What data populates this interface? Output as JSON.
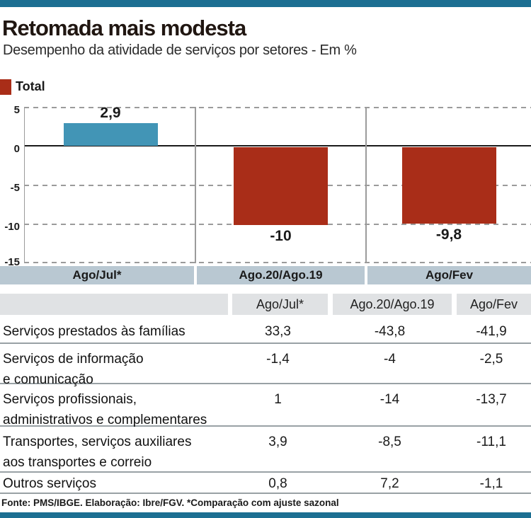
{
  "header": {
    "title": "Retomada mais modesta",
    "subtitle": "Desempenho da atividade de serviços por setores - Em %"
  },
  "legend": {
    "label": "Total",
    "swatch_color": "#a92d18"
  },
  "chart_data": {
    "type": "bar",
    "title": "Retomada mais modesta",
    "subtitle": "Desempenho da atividade de serviços por setores - Em %",
    "series_name": "Total",
    "categories": [
      "Ago/Jul*",
      "Ago.20/Ago.19",
      "Ago/Fev"
    ],
    "values": [
      2.9,
      -10,
      -9.8
    ],
    "value_labels": [
      "2,9",
      "-10",
      "-9,8"
    ],
    "bar_colors": [
      "#4295b6",
      "#a92d18",
      "#a92d18"
    ],
    "ylim": [
      -15,
      5
    ],
    "yticks": [
      "5",
      "0",
      "-5",
      "-10",
      "-15"
    ],
    "grid": "horizontal dashed, solid zero line",
    "legend_position": "top-left",
    "xlabel": "",
    "ylabel": "Em %"
  },
  "table": {
    "columns": [
      "Ago/Jul*",
      "Ago.20/Ago.19",
      "Ago/Fev"
    ],
    "rows": [
      {
        "label": "Serviços prestados às famílias",
        "label2": "",
        "values": [
          "33,3",
          "-43,8",
          "-41,9"
        ]
      },
      {
        "label": "Serviços de informação",
        "label2": "e comunicação",
        "values": [
          "-1,4",
          "-4",
          "-2,5"
        ]
      },
      {
        "label": "Serviços profissionais,",
        "label2": "administrativos e complementares",
        "values": [
          "1",
          "-14",
          "-13,7"
        ]
      },
      {
        "label": "Transportes, serviços auxiliares",
        "label2": "aos transportes e correio",
        "values": [
          "3,9",
          "-8,5",
          "-11,1"
        ]
      },
      {
        "label": "Outros serviços",
        "label2": "",
        "values": [
          "0,8",
          "7,2",
          "-1,1"
        ]
      }
    ]
  },
  "footer": {
    "text": "Fonte: PMS/IBGE. Elaboração: Ibre/FGV. *Comparação com ajuste sazonal"
  },
  "colors": {
    "accent_teal": "#1c6f92",
    "bar_positive": "#4295b6",
    "bar_negative": "#a92d18",
    "category_band": "#b9c8d2",
    "table_header": "#e0e2e4",
    "row_line": "#99a1a5"
  }
}
